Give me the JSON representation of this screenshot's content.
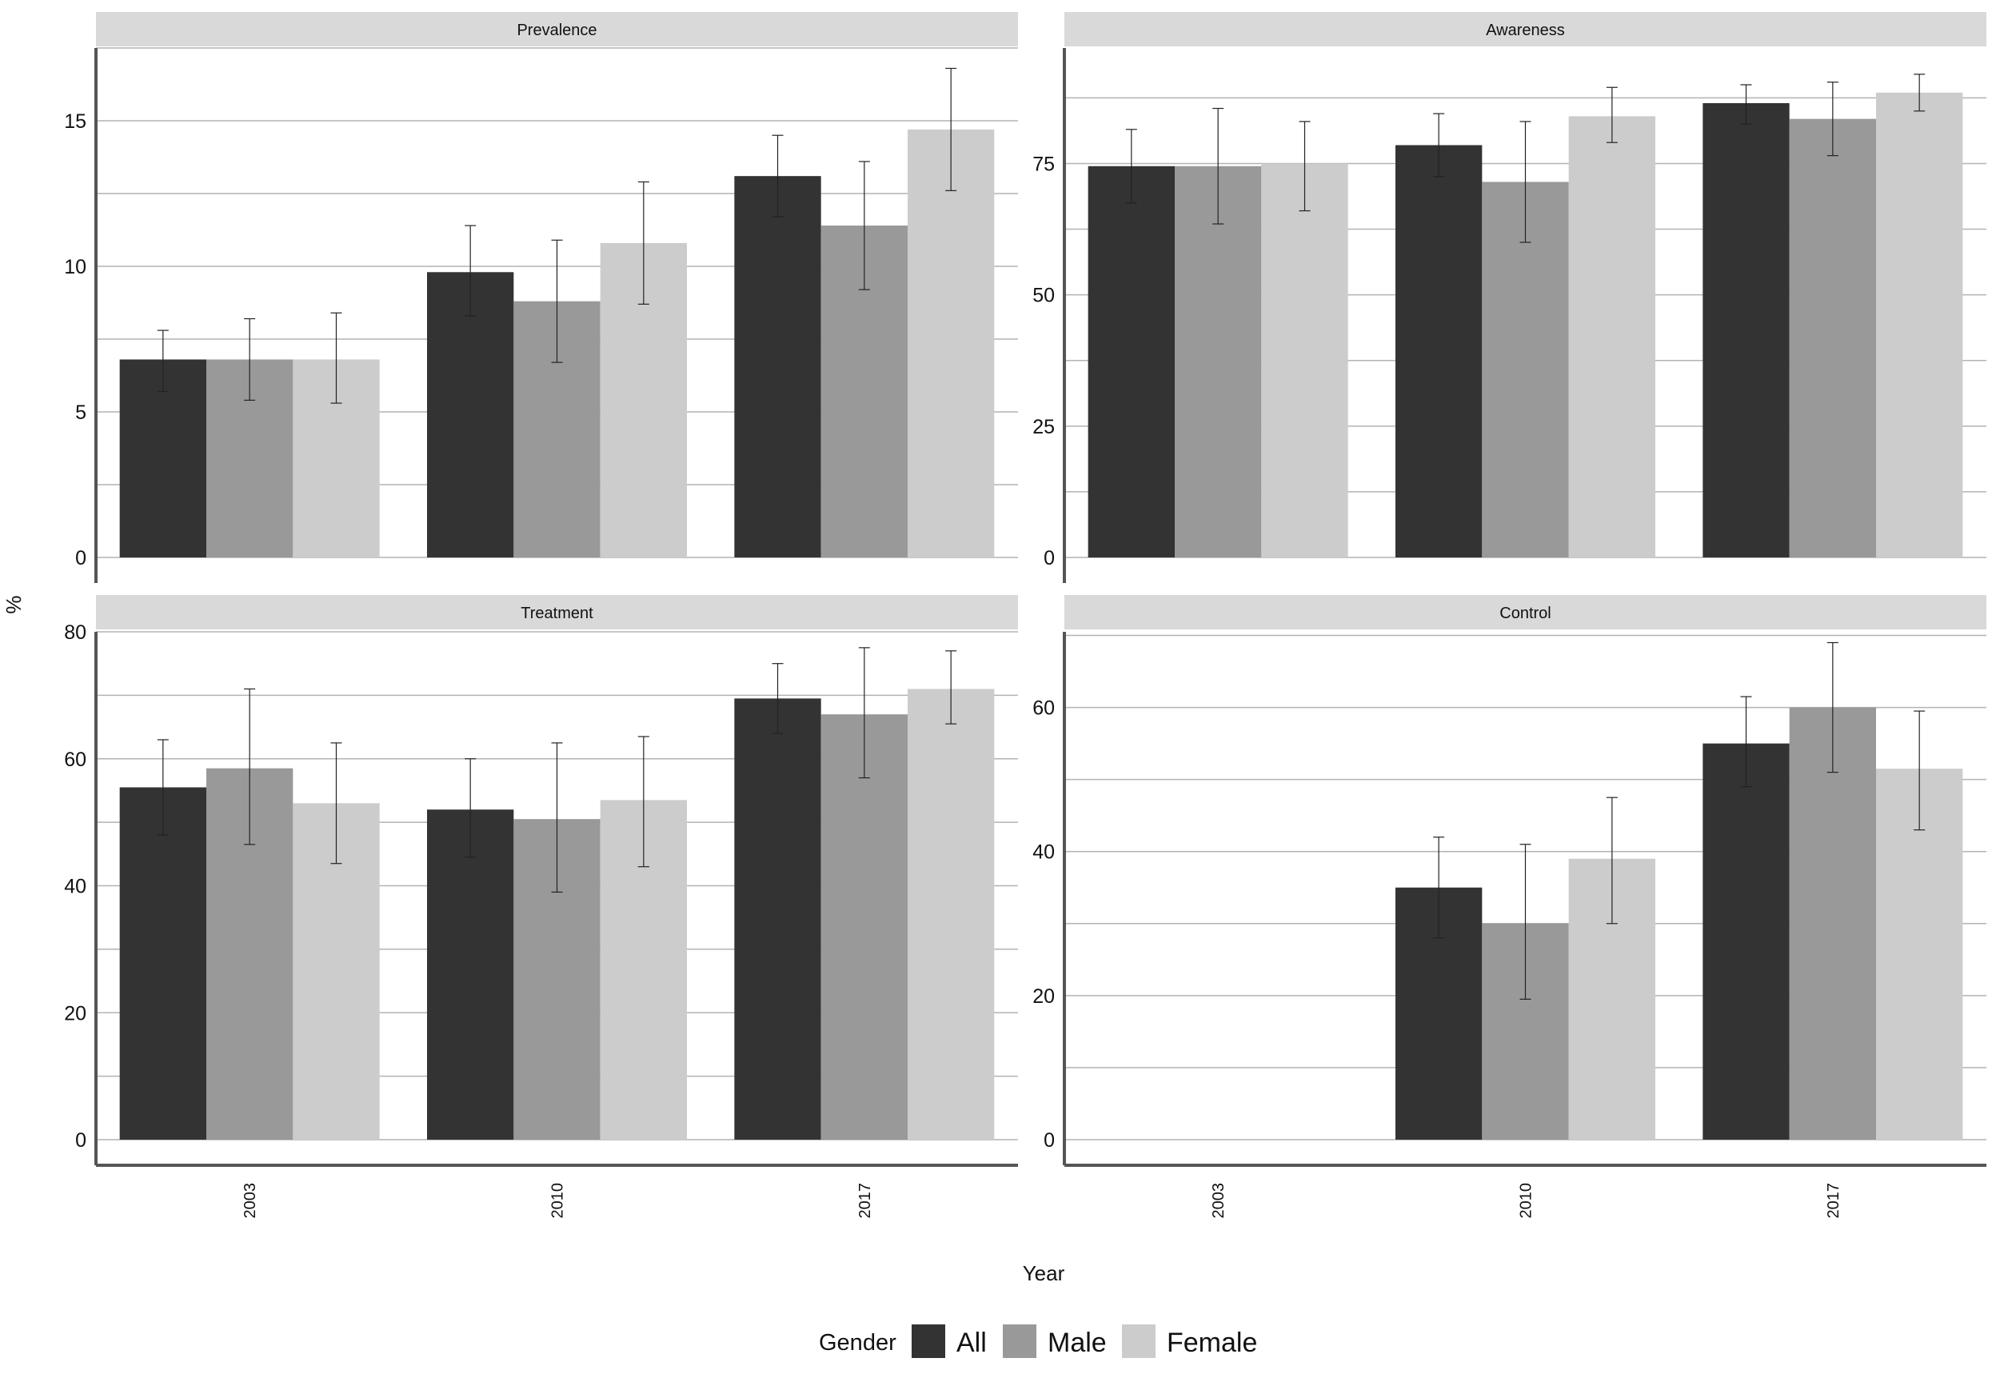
{
  "chart_data": {
    "type": "bar",
    "ylabel": "%",
    "xlabel": "Year",
    "legend": {
      "title": "Gender",
      "position": "bottom",
      "entries": [
        "All",
        "Male",
        "Female"
      ]
    },
    "colors": {
      "All": "#333333",
      "Male": "#999999",
      "Female": "#cccccc"
    },
    "categories": [
      "2003",
      "2010",
      "2017"
    ],
    "grid": true,
    "error_bars": true,
    "panels": [
      {
        "title": "Prevalence",
        "ylim": [
          0,
          17.5
        ],
        "yticks": [
          "0",
          "5",
          "10",
          "15"
        ],
        "series": [
          {
            "name": "All",
            "values": [
              6.8,
              9.8,
              13.1
            ],
            "lower": [
              5.7,
              8.3,
              11.7
            ],
            "upper": [
              7.8,
              11.4,
              14.5
            ]
          },
          {
            "name": "Male",
            "values": [
              6.8,
              8.8,
              11.4
            ],
            "lower": [
              5.4,
              6.7,
              9.2
            ],
            "upper": [
              8.2,
              10.9,
              13.6
            ]
          },
          {
            "name": "Female",
            "values": [
              6.8,
              10.8,
              14.7
            ],
            "lower": [
              5.3,
              8.7,
              12.6
            ],
            "upper": [
              8.4,
              12.9,
              16.8
            ]
          }
        ]
      },
      {
        "title": "Awareness",
        "ylim": [
          0,
          97
        ],
        "yticks": [
          "0",
          "25",
          "50",
          "75"
        ],
        "series": [
          {
            "name": "All",
            "values": [
              74.5,
              78.5,
              86.5
            ],
            "lower": [
              67.5,
              72.5,
              82.5
            ],
            "upper": [
              81.5,
              84.5,
              90.0
            ]
          },
          {
            "name": "Male",
            "values": [
              74.5,
              71.5,
              83.5
            ],
            "lower": [
              63.5,
              60.0,
              76.5
            ],
            "upper": [
              85.5,
              83.0,
              90.5
            ]
          },
          {
            "name": "Female",
            "values": [
              75.0,
              84.0,
              88.5
            ],
            "lower": [
              66.0,
              79.0,
              85.0
            ],
            "upper": [
              83.0,
              89.5,
              92.0
            ]
          }
        ]
      },
      {
        "title": "Treatment",
        "ylim": [
          0,
          80
        ],
        "yticks": [
          "0",
          "20",
          "40",
          "60",
          "80"
        ],
        "series": [
          {
            "name": "All",
            "values": [
              55.5,
              52.0,
              69.5
            ],
            "lower": [
              48.0,
              44.5,
              64.0
            ],
            "upper": [
              63.0,
              60.0,
              75.0
            ]
          },
          {
            "name": "Male",
            "values": [
              58.5,
              50.5,
              67.0
            ],
            "lower": [
              46.5,
              39.0,
              57.0
            ],
            "upper": [
              71.0,
              62.5,
              77.5
            ]
          },
          {
            "name": "Female",
            "values": [
              53.0,
              53.5,
              71.0
            ],
            "lower": [
              43.5,
              43.0,
              65.5
            ],
            "upper": [
              62.5,
              63.5,
              77.0
            ]
          }
        ]
      },
      {
        "title": "Control",
        "ylim": [
          0,
          70.5
        ],
        "yticks": [
          "0",
          "20",
          "40",
          "60"
        ],
        "series": [
          {
            "name": "All",
            "values": [
              null,
              35.0,
              55.0
            ],
            "lower": [
              null,
              28.0,
              49.0
            ],
            "upper": [
              null,
              42.0,
              61.5
            ]
          },
          {
            "name": "Male",
            "values": [
              null,
              30.0,
              60.0
            ],
            "lower": [
              null,
              19.5,
              51.0
            ],
            "upper": [
              null,
              41.0,
              69.0
            ]
          },
          {
            "name": "Female",
            "values": [
              null,
              39.0,
              51.5
            ],
            "lower": [
              null,
              30.0,
              43.0
            ],
            "upper": [
              null,
              47.5,
              59.5
            ]
          }
        ]
      }
    ]
  }
}
